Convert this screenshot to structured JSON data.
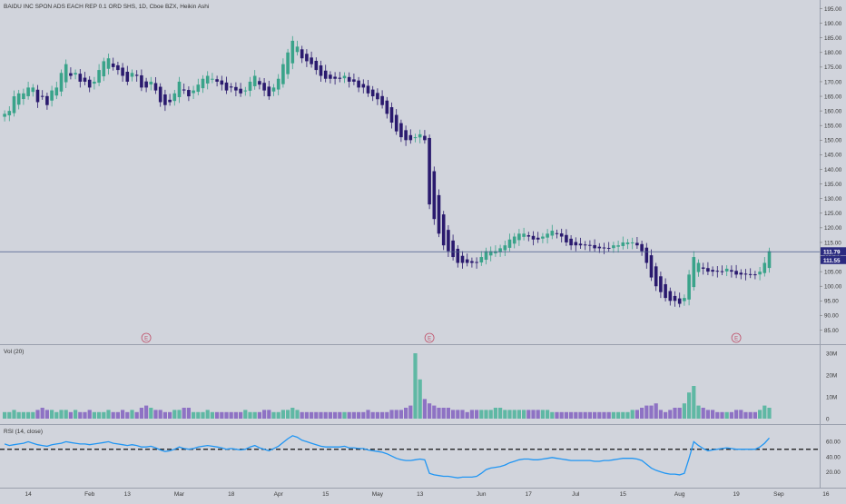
{
  "title": "BAIDU INC SPON ADS EACH REP 0.1 ORD SHS, 1D, Cboe BZX, Heikin Ashi",
  "colors": {
    "background": "#d1d4dc",
    "up": "#3aa38a",
    "down": "#2a1a6e",
    "vol_up": "#5fb8a4",
    "vol_down": "#8e72c4",
    "rsi_line": "#2196f3",
    "price_line": "#4a5a8a",
    "earnings": "#c0506a",
    "axis_text": "#3a3a3a"
  },
  "price_axis": {
    "min": 85,
    "max": 195,
    "ticks": [
      "195.00",
      "190.00",
      "185.00",
      "180.00",
      "175.00",
      "170.00",
      "165.00",
      "160.00",
      "155.00",
      "150.00",
      "145.00",
      "140.00",
      "135.00",
      "130.00",
      "125.00",
      "120.00",
      "115.00",
      "110.00",
      "105.00",
      "100.00",
      "95.00",
      "90.00",
      "85.00"
    ],
    "current_price": "111.79",
    "secondary_price": "111.55"
  },
  "earnings_markers": [
    {
      "label": "E",
      "bar": 30
    },
    {
      "label": "E",
      "bar": 90
    },
    {
      "label": "E",
      "bar": 155
    }
  ],
  "volume_panel": {
    "label": "Vol (20)",
    "ticks": [
      "30M",
      "20M",
      "10M",
      "0"
    ],
    "max": 30
  },
  "rsi_panel": {
    "label": "RSI (14, close)",
    "ticks": [
      "60.00",
      "40.00",
      "20.00"
    ],
    "min": 5,
    "max": 75,
    "reference": 50
  },
  "x_axis": {
    "labels": [
      {
        "text": "14",
        "bar": 5
      },
      {
        "text": "Feb",
        "bar": 18
      },
      {
        "text": "13",
        "bar": 26
      },
      {
        "text": "Mar",
        "bar": 37
      },
      {
        "text": "18",
        "bar": 48
      },
      {
        "text": "Apr",
        "bar": 58
      },
      {
        "text": "15",
        "bar": 68
      },
      {
        "text": "May",
        "bar": 79
      },
      {
        "text": "13",
        "bar": 88
      },
      {
        "text": "Jun",
        "bar": 101
      },
      {
        "text": "17",
        "bar": 111
      },
      {
        "text": "Jul",
        "bar": 121
      },
      {
        "text": "15",
        "bar": 131
      },
      {
        "text": "Aug",
        "bar": 143
      },
      {
        "text": "19",
        "bar": 155
      },
      {
        "text": "Sep",
        "bar": 164
      },
      {
        "text": "16",
        "bar": 174
      }
    ]
  },
  "chart_data": {
    "type": "candlestick",
    "symbol": "BAIDU INC SPON ADS EACH REP 0.1 ORD SHS",
    "interval": "1D",
    "exchange": "Cboe BZX",
    "style": "Heikin Ashi",
    "heikin_ashi_close": [
      159,
      160,
      165,
      166,
      166,
      168,
      168,
      163,
      165,
      162,
      167,
      168,
      173,
      176,
      172,
      173,
      170,
      170,
      168,
      170,
      174,
      177,
      178,
      175,
      174,
      172,
      170,
      173,
      172,
      168,
      168,
      170,
      167,
      163,
      162,
      163,
      166,
      170,
      167,
      165,
      167,
      169,
      171,
      172,
      171,
      170,
      169,
      167,
      168,
      167,
      166,
      167,
      170,
      172,
      169,
      167,
      165,
      168,
      171,
      176,
      180,
      184,
      182,
      178,
      177,
      176,
      174,
      172,
      171,
      171,
      171,
      171,
      172,
      170,
      170,
      168,
      168,
      166,
      165,
      164,
      162,
      159,
      156,
      153,
      151,
      150,
      150,
      151,
      152,
      150,
      128,
      123,
      118,
      114,
      112,
      110,
      108,
      108,
      108,
      108,
      108,
      110,
      112,
      112,
      112,
      113,
      114,
      116,
      117,
      118,
      118,
      117,
      116,
      116,
      117,
      118,
      119,
      118,
      117,
      115,
      114,
      114,
      114,
      114,
      114,
      113,
      113,
      113,
      113,
      114,
      114,
      115,
      115,
      115,
      114,
      112,
      108,
      103,
      100,
      98,
      96,
      95,
      95,
      94,
      96,
      104,
      110,
      108,
      106,
      105,
      105,
      105,
      105,
      106,
      105,
      104,
      104,
      104,
      104,
      104,
      105,
      108,
      112
    ],
    "volume_millions": [
      3,
      3,
      4,
      3,
      3,
      3,
      3,
      4,
      5,
      4,
      4,
      3,
      4,
      4,
      3,
      4,
      3,
      3,
      4,
      3,
      3,
      3,
      4,
      3,
      3,
      4,
      3,
      4,
      3,
      5,
      6,
      5,
      4,
      4,
      3,
      3,
      4,
      4,
      5,
      5,
      3,
      3,
      3,
      4,
      3,
      3,
      3,
      3,
      3,
      3,
      3,
      4,
      3,
      3,
      3,
      4,
      4,
      3,
      3,
      4,
      4,
      5,
      4,
      3,
      3,
      3,
      3,
      3,
      3,
      3,
      3,
      3,
      3,
      3,
      3,
      3,
      3,
      4,
      3,
      3,
      3,
      3,
      4,
      4,
      4,
      5,
      6,
      30,
      18,
      9,
      7,
      6,
      5,
      5,
      5,
      4,
      4,
      4,
      3,
      4,
      4,
      4,
      4,
      4,
      5,
      5,
      4,
      4,
      4,
      4,
      4,
      4,
      4,
      4,
      4,
      4,
      3,
      3,
      3,
      3,
      3,
      3,
      3,
      3,
      3,
      3,
      3,
      3,
      3,
      3,
      3,
      3,
      3,
      4,
      4,
      5,
      6,
      6,
      7,
      4,
      3,
      4,
      5,
      5,
      7,
      12,
      15,
      6,
      5,
      4,
      4,
      3,
      3,
      3,
      3,
      4,
      4,
      3,
      3,
      3,
      4,
      6,
      5
    ],
    "rsi": [
      57,
      55,
      56,
      57,
      58,
      60,
      58,
      56,
      55,
      54,
      56,
      57,
      58,
      60,
      59,
      58,
      57,
      57,
      56,
      57,
      58,
      59,
      60,
      58,
      57,
      56,
      55,
      56,
      55,
      53,
      53,
      54,
      52,
      49,
      47,
      48,
      50,
      53,
      51,
      50,
      51,
      53,
      54,
      55,
      54,
      53,
      52,
      50,
      51,
      50,
      49,
      50,
      53,
      55,
      52,
      50,
      48,
      51,
      54,
      59,
      64,
      68,
      66,
      62,
      60,
      58,
      56,
      54,
      53,
      53,
      53,
      53,
      54,
      52,
      52,
      51,
      51,
      49,
      48,
      47,
      46,
      44,
      41,
      38,
      36,
      35,
      35,
      36,
      37,
      36,
      18,
      16,
      15,
      14,
      14,
      13,
      12,
      13,
      13,
      13,
      14,
      18,
      23,
      25,
      26,
      27,
      29,
      32,
      34,
      36,
      37,
      37,
      36,
      36,
      37,
      38,
      39,
      38,
      37,
      36,
      35,
      35,
      35,
      35,
      35,
      34,
      34,
      35,
      35,
      36,
      37,
      38,
      38,
      38,
      37,
      35,
      30,
      25,
      22,
      20,
      18,
      17,
      17,
      16,
      18,
      38,
      60,
      55,
      51,
      48,
      49,
      50,
      51,
      52,
      51,
      50,
      50,
      50,
      50,
      50,
      53,
      58,
      65
    ]
  }
}
